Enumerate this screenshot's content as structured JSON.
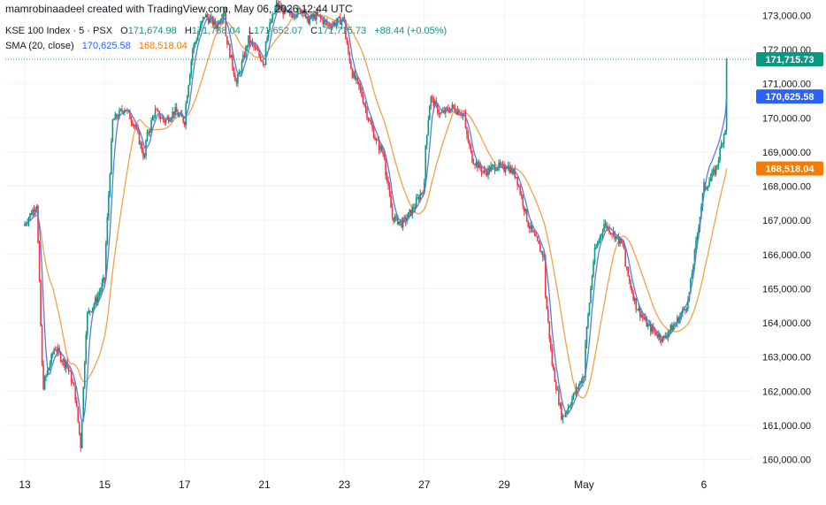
{
  "credit": "mamrobinaadeel created with TradingView.com, May 06, 2026 12:44 UTC",
  "legend": {
    "symbol": "KSE 100 Index · 5 · PSX",
    "open_label": "O",
    "open": "171,674.98",
    "high_label": "H",
    "high": "171,738.04",
    "low_label": "L",
    "low": "171,652.07",
    "close_label": "C",
    "close": "171,715.73",
    "change": "+88.44 (+0.05%)",
    "sma_label": "SMA (20, close)",
    "sma_value_1": "170,625.58",
    "sma_value_2": "168,518.04"
  },
  "colors": {
    "up": "#089981",
    "down": "#f23645",
    "sma_fast": "#5b7be0",
    "sma_slow": "#f5a04c",
    "price_badge": "#089981",
    "sma_fast_badge": "#2962ff",
    "sma_slow_badge": "#f57c00",
    "grid": "#f0f3fa",
    "axis_text": "#131722"
  },
  "chart_data": {
    "type": "candlestick",
    "grid": true,
    "y_axis": {
      "position": "right",
      "ylim": [
        159600,
        173450
      ],
      "ticks": [
        160000,
        161000,
        162000,
        163000,
        164000,
        165000,
        166000,
        167000,
        168000,
        169000,
        170000,
        171000,
        172000,
        173000
      ],
      "tick_labels": [
        "160,000.00",
        "161,000.00",
        "162,000.00",
        "163,000.00",
        "164,000.00",
        "165,000.00",
        "166,000.00",
        "167,000.00",
        "168,000.00",
        "169,000.00",
        "170,000.00",
        "171,000.00",
        "172,000.00",
        "173,000.00"
      ]
    },
    "x_axis": {
      "sessions": [
        "13",
        "14",
        "15",
        "16",
        "17",
        "20",
        "21",
        "22",
        "23",
        "24",
        "27",
        "28",
        "29",
        "30",
        "May",
        "4",
        "5",
        "6"
      ],
      "labeled_sessions": [
        "13",
        "15",
        "17",
        "21",
        "23",
        "27",
        "29",
        "May",
        "6"
      ],
      "current_session_fraction": 0.55
    },
    "price_points": [
      [
        "13",
        0.0,
        166900
      ],
      [
        "13",
        0.3,
        167500
      ],
      [
        "13",
        0.45,
        162100
      ],
      [
        "13",
        0.75,
        163300
      ],
      [
        "13",
        1.0,
        162800
      ],
      [
        "14",
        0.0,
        163000
      ],
      [
        "14",
        0.25,
        162000
      ],
      [
        "14",
        0.4,
        160400
      ],
      [
        "14",
        0.55,
        164200
      ],
      [
        "14",
        0.8,
        164700
      ],
      [
        "14",
        1.0,
        165300
      ],
      [
        "15",
        0.0,
        165600
      ],
      [
        "15",
        0.2,
        169900
      ],
      [
        "15",
        0.5,
        170300
      ],
      [
        "15",
        0.75,
        169800
      ],
      [
        "15",
        1.0,
        168800
      ],
      [
        "16",
        0.0,
        169200
      ],
      [
        "16",
        0.25,
        170200
      ],
      [
        "16",
        0.5,
        169900
      ],
      [
        "16",
        0.75,
        170200
      ],
      [
        "16",
        1.0,
        169900
      ],
      [
        "17",
        0.0,
        170100
      ],
      [
        "17",
        0.2,
        172000
      ],
      [
        "17",
        0.5,
        173000
      ],
      [
        "17",
        0.8,
        172700
      ],
      [
        "17",
        1.0,
        173200
      ],
      [
        "20",
        0.0,
        172600
      ],
      [
        "20",
        0.3,
        171000
      ],
      [
        "20",
        0.6,
        172300
      ],
      [
        "20",
        1.0,
        171600
      ],
      [
        "21",
        0.0,
        172200
      ],
      [
        "21",
        0.3,
        173300
      ],
      [
        "21",
        0.6,
        173000
      ],
      [
        "21",
        1.0,
        173200
      ],
      [
        "22",
        0.0,
        172800
      ],
      [
        "22",
        0.3,
        173000
      ],
      [
        "22",
        0.6,
        172700
      ],
      [
        "22",
        1.0,
        172900
      ],
      [
        "23",
        0.0,
        172500
      ],
      [
        "23",
        0.2,
        171300
      ],
      [
        "23",
        0.4,
        170800
      ],
      [
        "23",
        0.6,
        170000
      ],
      [
        "23",
        0.8,
        169300
      ],
      [
        "23",
        1.0,
        168900
      ],
      [
        "24",
        0.0,
        168700
      ],
      [
        "24",
        0.2,
        167100
      ],
      [
        "24",
        0.45,
        166900
      ],
      [
        "24",
        0.7,
        167300
      ],
      [
        "24",
        1.0,
        168000
      ],
      [
        "27",
        0.0,
        168800
      ],
      [
        "27",
        0.15,
        170600
      ],
      [
        "27",
        0.4,
        170100
      ],
      [
        "27",
        0.7,
        170300
      ],
      [
        "27",
        1.0,
        170100
      ],
      [
        "28",
        0.0,
        169800
      ],
      [
        "28",
        0.2,
        168800
      ],
      [
        "28",
        0.5,
        168400
      ],
      [
        "28",
        0.8,
        168600
      ],
      [
        "28",
        1.0,
        168500
      ],
      [
        "29",
        0.0,
        168700
      ],
      [
        "29",
        0.3,
        168300
      ],
      [
        "29",
        0.6,
        166900
      ],
      [
        "29",
        1.0,
        165900
      ],
      [
        "30",
        0.0,
        165200
      ],
      [
        "30",
        0.2,
        162800
      ],
      [
        "30",
        0.45,
        161200
      ],
      [
        "30",
        0.75,
        161900
      ],
      [
        "30",
        1.0,
        162500
      ],
      [
        "May",
        0.0,
        163000
      ],
      [
        "May",
        0.25,
        166000
      ],
      [
        "May",
        0.5,
        166900
      ],
      [
        "May",
        0.75,
        166600
      ],
      [
        "May",
        1.0,
        166200
      ],
      [
        "4",
        0.0,
        165800
      ],
      [
        "4",
        0.3,
        164500
      ],
      [
        "4",
        0.6,
        163900
      ],
      [
        "4",
        1.0,
        163500
      ],
      [
        "5",
        0.0,
        163600
      ],
      [
        "5",
        0.3,
        164000
      ],
      [
        "5",
        0.6,
        164600
      ],
      [
        "5",
        1.0,
        168000
      ],
      [
        "6",
        0.0,
        167900
      ],
      [
        "6",
        0.3,
        168500
      ],
      [
        "6",
        0.7,
        170600
      ],
      [
        "6",
        1.0,
        171900
      ]
    ],
    "sma_fast_name": "",
    "sma_slow_name": "",
    "last_price": 171715.73,
    "last_price_label": "171,715.73",
    "sma_fast_last": 170625.58,
    "sma_fast_last_label": "170,625.58",
    "sma_slow_last": 168518.04,
    "sma_slow_last_label": "168,518.04"
  }
}
